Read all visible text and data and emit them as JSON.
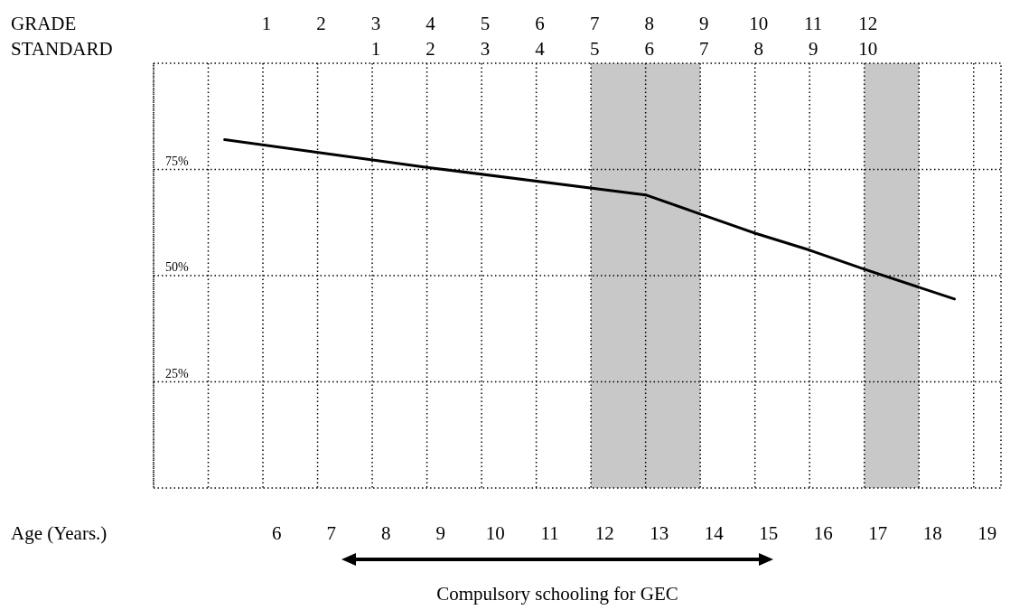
{
  "chart_data": {
    "type": "line",
    "xlabel": "Age (Years.)",
    "x2label": "GRADE",
    "xlim": [
      3.75,
      19.25
    ],
    "xticks": [
      6,
      7,
      8,
      9,
      10,
      11,
      12,
      13,
      14,
      15,
      16,
      17,
      18,
      19
    ],
    "x2lim": [
      -1,
      14.5
    ],
    "x2ticks": [
      {
        "value": -1,
        "label": null
      },
      {
        "value": 0,
        "label": null
      },
      1,
      2,
      3,
      4,
      5,
      6,
      7,
      8,
      9,
      10,
      11,
      12,
      {
        "value": 13,
        "label": null
      },
      {
        "value": 14,
        "label": null
      }
    ],
    "ylim": [
      0,
      100
    ],
    "yticks": [
      {
        "value": 25,
        "label": "25%"
      },
      {
        "value": 50,
        "label": "50%"
      },
      {
        "value": 75,
        "label": "75%"
      }
    ],
    "grid": true,
    "line_style": "solid",
    "series": [
      {
        "color": "#000000",
        "x": [
          5.05,
          8.75,
          12.75,
          13.75,
          14.75,
          15.75,
          16.75,
          18.4
        ],
        "values": [
          82,
          75.5,
          69,
          64.5,
          60,
          56,
          51.5,
          44.5
        ]
      }
    ],
    "bands": [
      {
        "axis": "x",
        "from": 11.75,
        "to": 13.75,
        "color": "#c8c8c8"
      },
      {
        "axis": "x",
        "from": 16.75,
        "to": 17.75,
        "color": "#c8c8c8"
      }
    ],
    "annotations": [
      "STANDARD",
      "1",
      "2",
      "3",
      "4",
      "5",
      "6",
      "7",
      "8",
      "9",
      "10",
      "Compulsory schooling for GEC"
    ]
  }
}
